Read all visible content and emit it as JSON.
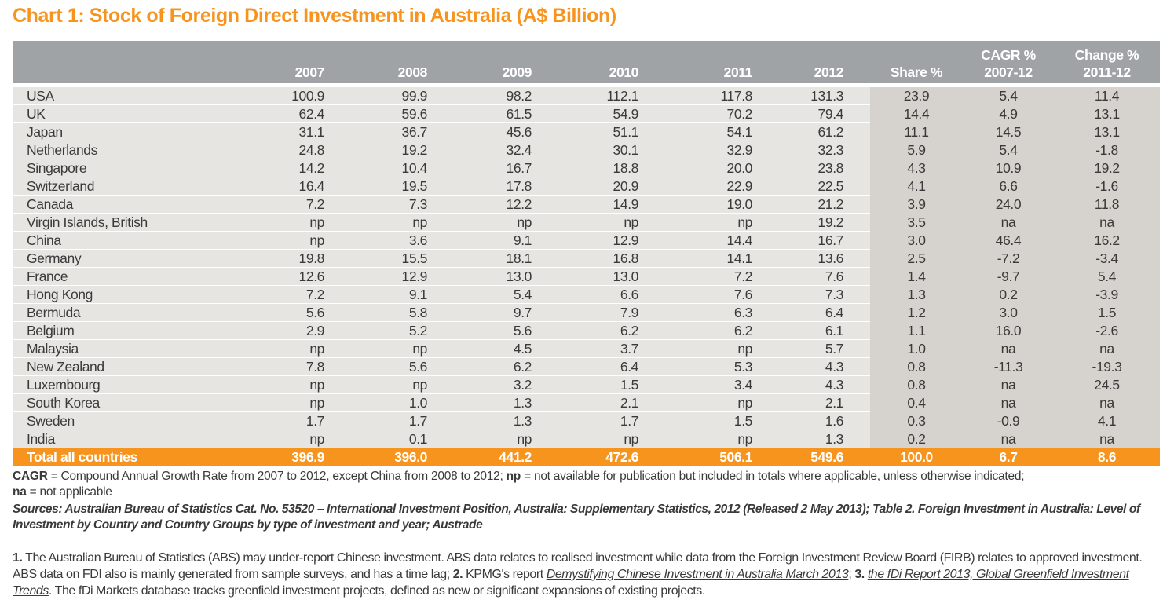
{
  "chart_data": {
    "type": "table",
    "title": "Chart 1: Stock of Foreign Direct Investment in Australia (A$ Billion)",
    "columns": [
      "",
      "2007",
      "2008",
      "2009",
      "2010",
      "2011",
      "2012",
      "Share %",
      "CAGR % 2007-12",
      "Change % 2011-12"
    ],
    "header_lines": [
      [
        "",
        ""
      ],
      [
        "",
        "2007"
      ],
      [
        "",
        "2008"
      ],
      [
        "",
        "2009"
      ],
      [
        "",
        "2010"
      ],
      [
        "",
        "2011"
      ],
      [
        "",
        "2012"
      ],
      [
        "",
        "Share %"
      ],
      [
        "CAGR %",
        "2007-12"
      ],
      [
        "Change %",
        "2011-12"
      ]
    ],
    "rows": [
      [
        "USA",
        "100.9",
        "99.9",
        "98.2",
        "112.1",
        "117.8",
        "131.3",
        "23.9",
        "5.4",
        "11.4"
      ],
      [
        "UK",
        "62.4",
        "59.6",
        "61.5",
        "54.9",
        "70.2",
        "79.4",
        "14.4",
        "4.9",
        "13.1"
      ],
      [
        "Japan",
        "31.1",
        "36.7",
        "45.6",
        "51.1",
        "54.1",
        "61.2",
        "11.1",
        "14.5",
        "13.1"
      ],
      [
        "Netherlands",
        "24.8",
        "19.2",
        "32.4",
        "30.1",
        "32.9",
        "32.3",
        "5.9",
        "5.4",
        "-1.8"
      ],
      [
        "Singapore",
        "14.2",
        "10.4",
        "16.7",
        "18.8",
        "20.0",
        "23.8",
        "4.3",
        "10.9",
        "19.2"
      ],
      [
        "Switzerland",
        "16.4",
        "19.5",
        "17.8",
        "20.9",
        "22.9",
        "22.5",
        "4.1",
        "6.6",
        "-1.6"
      ],
      [
        "Canada",
        "7.2",
        "7.3",
        "12.2",
        "14.9",
        "19.0",
        "21.2",
        "3.9",
        "24.0",
        "11.8"
      ],
      [
        "Virgin Islands, British",
        "np",
        "np",
        "np",
        "np",
        "np",
        "19.2",
        "3.5",
        "na",
        "na"
      ],
      [
        "China",
        "np",
        "3.6",
        "9.1",
        "12.9",
        "14.4",
        "16.7",
        "3.0",
        "46.4",
        "16.2"
      ],
      [
        "Germany",
        "19.8",
        "15.5",
        "18.1",
        "16.8",
        "14.1",
        "13.6",
        "2.5",
        "-7.2",
        "-3.4"
      ],
      [
        "France",
        "12.6",
        "12.9",
        "13.0",
        "13.0",
        "7.2",
        "7.6",
        "1.4",
        "-9.7",
        "5.4"
      ],
      [
        "Hong Kong",
        "7.2",
        "9.1",
        "5.4",
        "6.6",
        "7.6",
        "7.3",
        "1.3",
        "0.2",
        "-3.9"
      ],
      [
        "Bermuda",
        "5.6",
        "5.8",
        "9.7",
        "7.9",
        "6.3",
        "6.4",
        "1.2",
        "3.0",
        "1.5"
      ],
      [
        "Belgium",
        "2.9",
        "5.2",
        "5.6",
        "6.2",
        "6.2",
        "6.1",
        "1.1",
        "16.0",
        "-2.6"
      ],
      [
        "Malaysia",
        "np",
        "np",
        "4.5",
        "3.7",
        "np",
        "5.7",
        "1.0",
        "na",
        "na"
      ],
      [
        "New Zealand",
        "7.8",
        "5.6",
        "6.2",
        "6.4",
        "5.3",
        "4.3",
        "0.8",
        "-11.3",
        "-19.3"
      ],
      [
        "Luxembourg",
        "np",
        "np",
        "3.2",
        "1.5",
        "3.4",
        "4.3",
        "0.8",
        "na",
        "24.5"
      ],
      [
        "South Korea",
        "np",
        "1.0",
        "1.3",
        "2.1",
        "np",
        "2.1",
        "0.4",
        "na",
        "na"
      ],
      [
        "Sweden",
        "1.7",
        "1.7",
        "1.3",
        "1.7",
        "1.5",
        "1.6",
        "0.3",
        "-0.9",
        "4.1"
      ],
      [
        "India",
        "np",
        "0.1",
        "np",
        "np",
        "np",
        "1.3",
        "0.2",
        "na",
        "na"
      ]
    ],
    "total": [
      "Total all countries",
      "396.9",
      "396.0",
      "441.2",
      "472.6",
      "506.1",
      "549.6",
      "100.0",
      "6.7",
      "8.6"
    ]
  },
  "colors": {
    "accent": "#f7941d",
    "header": "#a0a3a6",
    "body": "#e6e5e1",
    "shaded": "#d6d2ce"
  },
  "notes": {
    "cagr_label": "CAGR",
    "cagr_text": " = Compound Annual Growth Rate from 2007 to 2012, except China from 2008 to 2012; ",
    "np_label": "np",
    "np_text": " = not available for publication but included in totals where applicable, unless otherwise indicated;",
    "na_label": "na",
    "na_text": " = not applicable",
    "sources": "Sources: Australian Bureau of Statistics Cat. No. 53520 – International Investment Position, Australia: Supplementary Statistics, 2012 (Released 2 May 2013); Table 2. Foreign Investment in Australia: Level of Investment by Country and Country Groups by type of investment and year; Austrade"
  },
  "footnotes": {
    "n1": "1.",
    "t1": " The Australian Bureau of Statistics (ABS) may under-report Chinese investment. ABS data relates to realised investment while data from the Foreign Investment Review Board (FIRB) relates to approved investment. ABS data on FDI also is mainly generated from sample surveys, and has a time lag; ",
    "n2": "2.",
    "t2": " KPMG's report ",
    "link2": "Demystifying Chinese Investment in Australia March 2013",
    "t2b": "; ",
    "n3": "3.",
    "t3": " ",
    "link3": "the fDi Report 2013, Global Greenfield Investment Trends",
    "t3b": ". The fDi Markets database tracks greenfield investment projects, defined as new or significant expansions of existing projects."
  }
}
